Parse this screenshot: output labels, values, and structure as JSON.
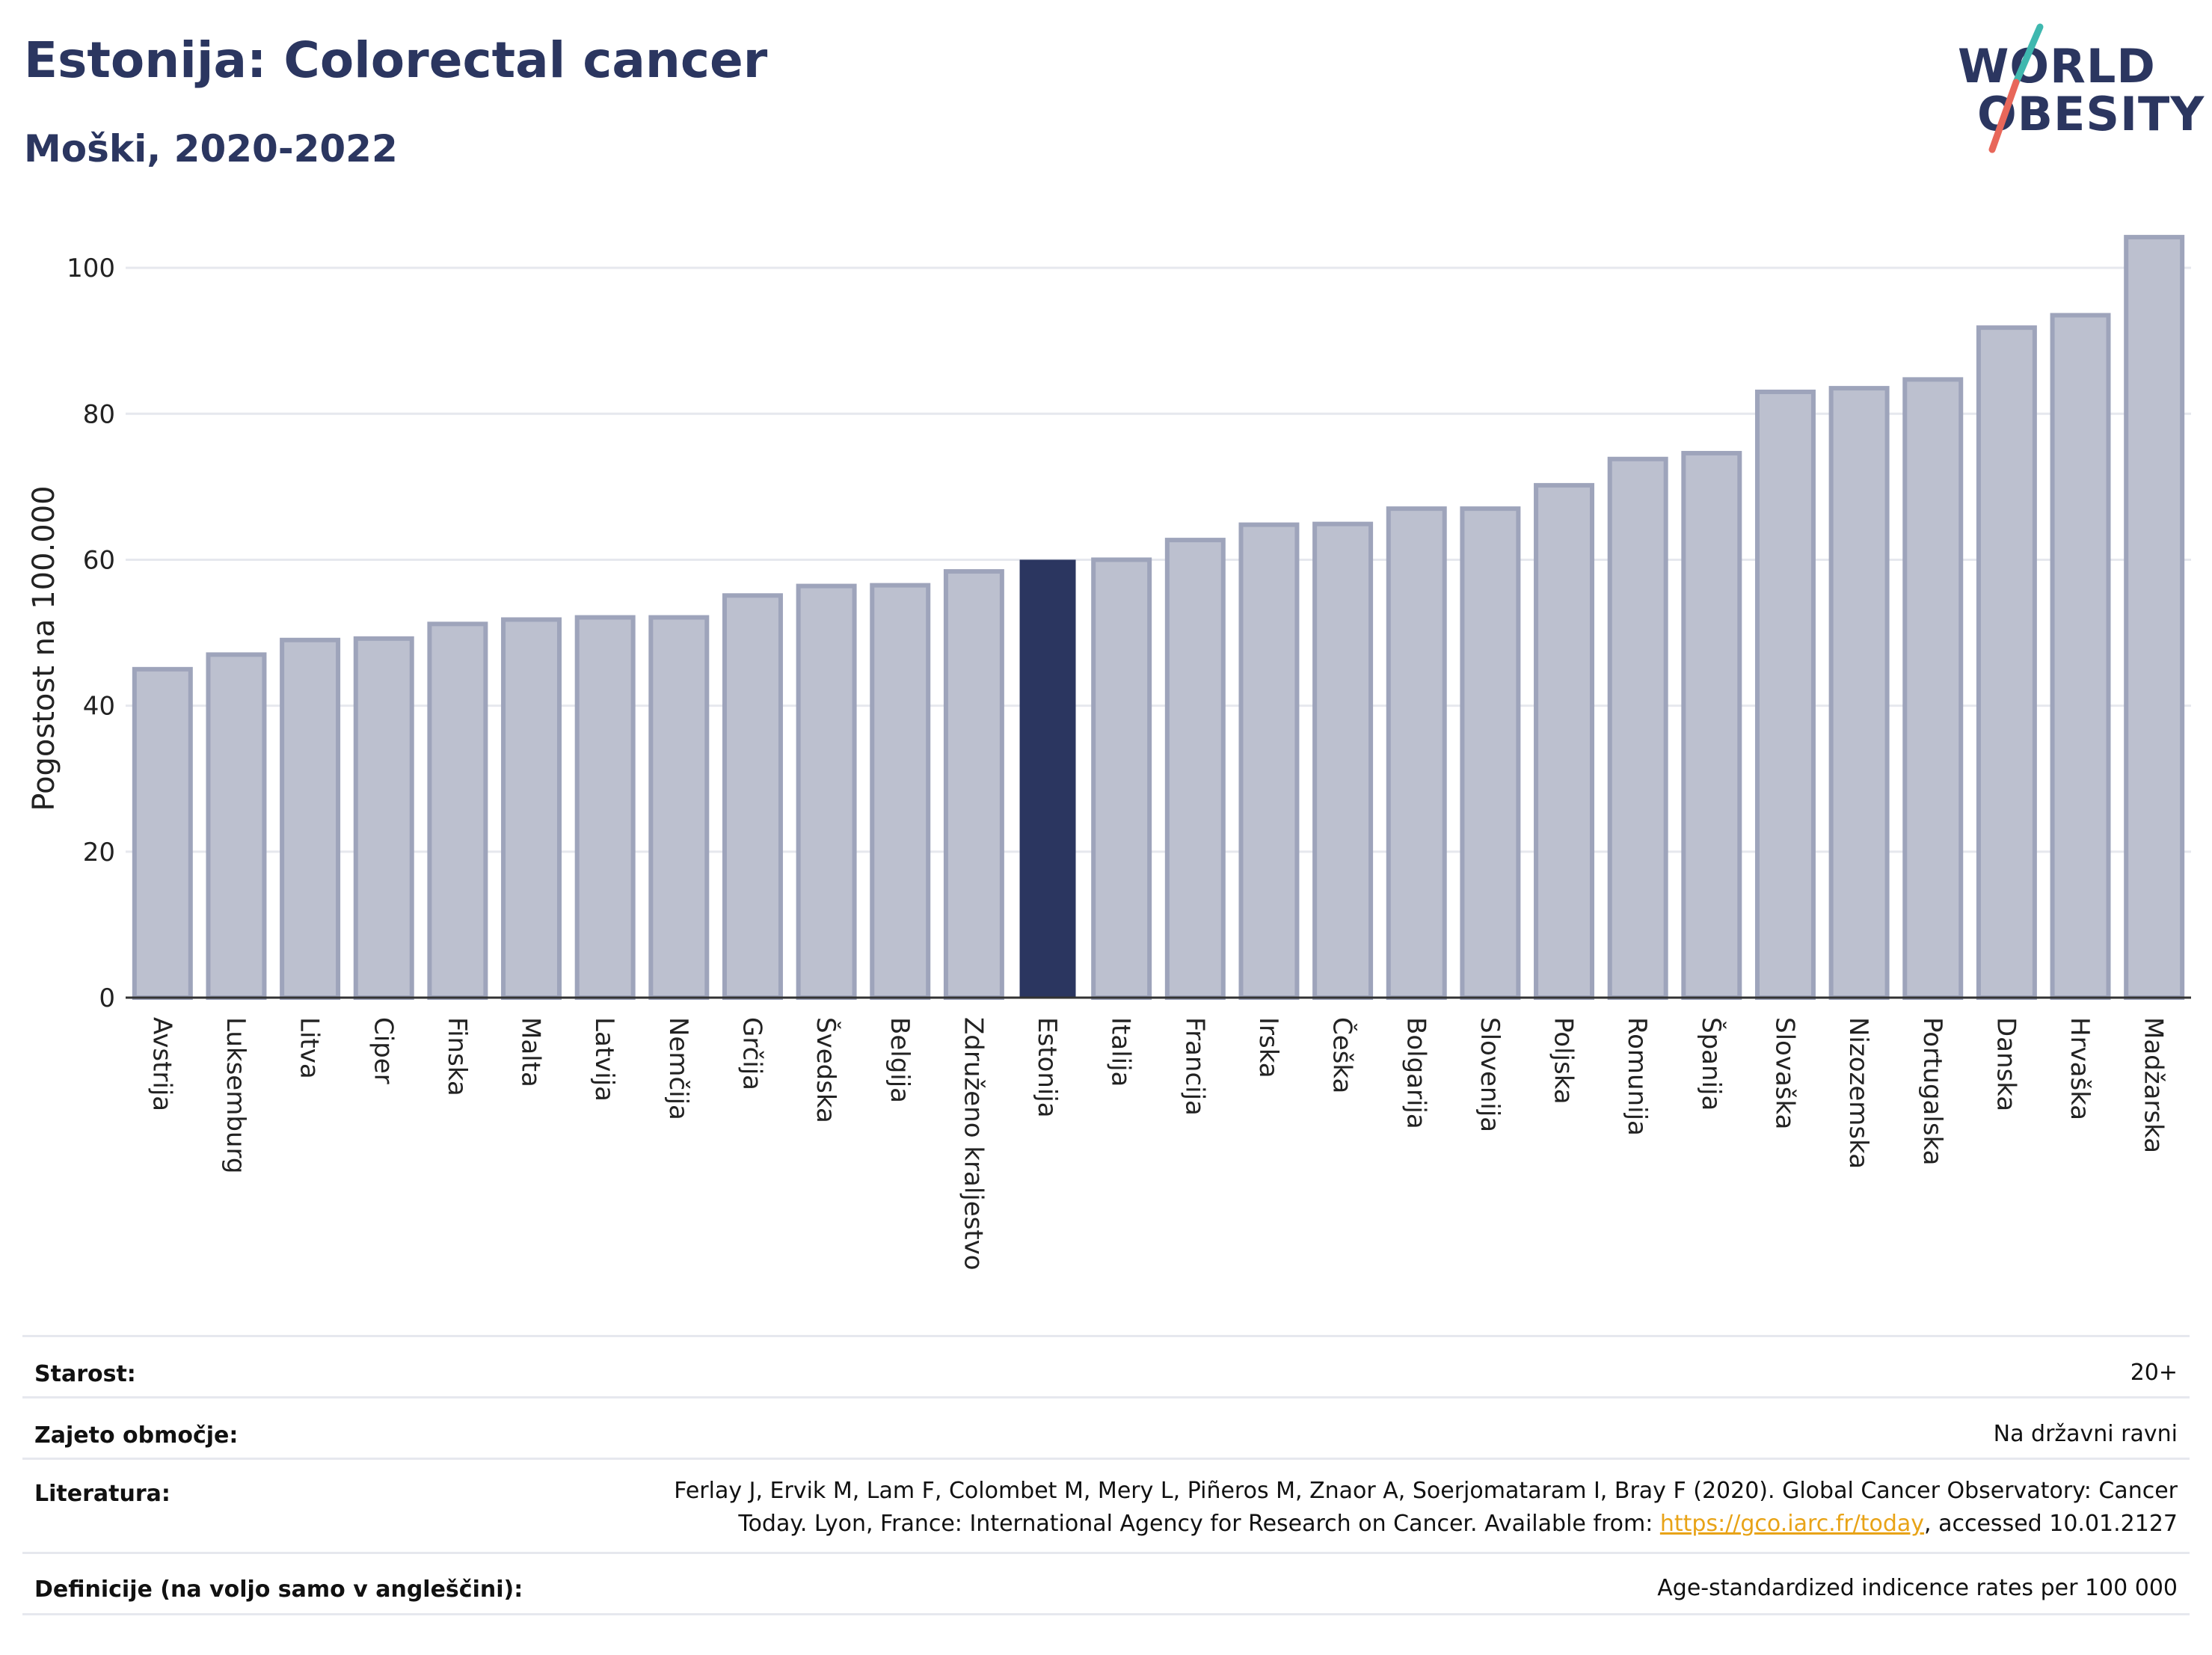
{
  "header": {
    "title": "Estonija: Colorectal cancer",
    "subtitle": "Moški, 2020-2022"
  },
  "logo": {
    "line1": "WORLD",
    "line2": "OBESITY",
    "colors": {
      "text": "#2b3660",
      "slash_top": "#3fb8af",
      "slash_bottom": "#e8675a"
    }
  },
  "colors": {
    "bar_default": "#bcc0cf",
    "bar_default_edge": "#9ea4bb",
    "bar_highlight": "#2b3660",
    "grid": "#e6e8ee"
  },
  "chart_data": {
    "type": "bar",
    "ylabel": "Pogostost na 100.000",
    "ylim": [
      0,
      108
    ],
    "yticks": [
      0,
      20,
      40,
      60,
      80,
      100
    ],
    "grid": true,
    "highlight": "Estonija",
    "categories": [
      "Avstrija",
      "Luksemburg",
      "Litva",
      "Ciper",
      "Finska",
      "Malta",
      "Latvija",
      "Nemčija",
      "Grčija",
      "Švedska",
      "Belgija",
      "Združeno kraljestvo",
      "Estonija",
      "Italija",
      "Francija",
      "Irska",
      "Češka",
      "Bolgarija",
      "Slovenija",
      "Poljska",
      "Romunija",
      "Španija",
      "Slovaška",
      "Nizozemska",
      "Portugalska",
      "Danska",
      "Hrvaška",
      "Madžarska"
    ],
    "values": [
      45,
      47,
      49,
      49.2,
      51.2,
      51.8,
      52.1,
      52.1,
      55.1,
      56.4,
      56.5,
      58.4,
      60,
      60,
      62.7,
      64.8,
      64.9,
      67,
      67,
      70.2,
      73.8,
      74.6,
      83,
      83.5,
      84.7,
      91.8,
      93.5,
      104.2
    ]
  },
  "info": {
    "rows": [
      {
        "key": "Starost:",
        "value": "20+"
      },
      {
        "key": "Zajeto območje:",
        "value": "Na državni ravni"
      },
      {
        "key": "Literatura:",
        "value_line1": "Ferlay J, Ervik M, Lam F, Colombet M, Mery L, Piñeros M, Znaor A, Soerjomataram I, Bray F (2020). Global Cancer Observatory: Cancer",
        "value_line2_pre": "Today. Lyon, France: International Agency for Research on Cancer. Available from: ",
        "link": "https://gco.iarc.fr/today",
        "value_line2_post": ", accessed 10.01.2127"
      },
      {
        "key": "Definicije (na voljo samo v angleščini):",
        "value": "Age-standardized indicence rates per 100 000"
      }
    ]
  }
}
